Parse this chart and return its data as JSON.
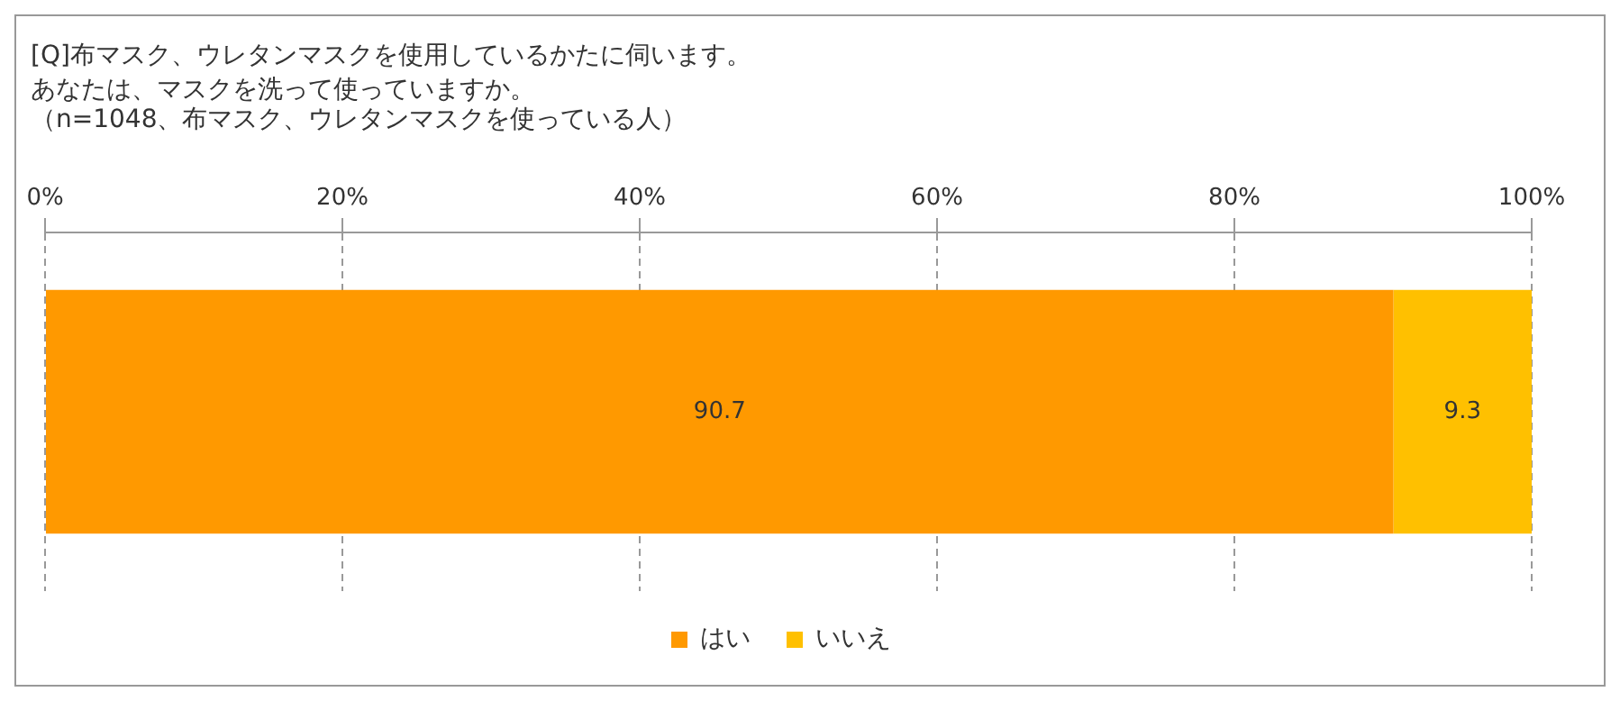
{
  "chart_data": {
    "type": "bar",
    "orientation": "horizontal",
    "stacked": true,
    "title": "[Q]布マスク、ウレタンマスクを使用しているかたに伺います。",
    "subtitle": "あなたは、マスクを洗って使っていますか。",
    "annotations": [
      "（n=1048、布マスク、ウレタンマスクを使っている人）"
    ],
    "categories": [
      null
    ],
    "series": [
      {
        "name": "はい",
        "color": "#ff9900",
        "values": [
          90.7
        ]
      },
      {
        "name": "いいえ",
        "color": "#ffc000",
        "values": [
          9.3
        ]
      }
    ],
    "xlim": [
      0,
      100
    ],
    "xticks": [
      {
        "value": 0,
        "label": "0%"
      },
      {
        "value": 20,
        "label": "20%"
      },
      {
        "value": 40,
        "label": "40%"
      },
      {
        "value": 60,
        "label": "60%"
      },
      {
        "value": 80,
        "label": "80%"
      },
      {
        "value": 100,
        "label": "100%"
      }
    ],
    "grid": "x",
    "legend": "bottom",
    "data_labels": true
  }
}
